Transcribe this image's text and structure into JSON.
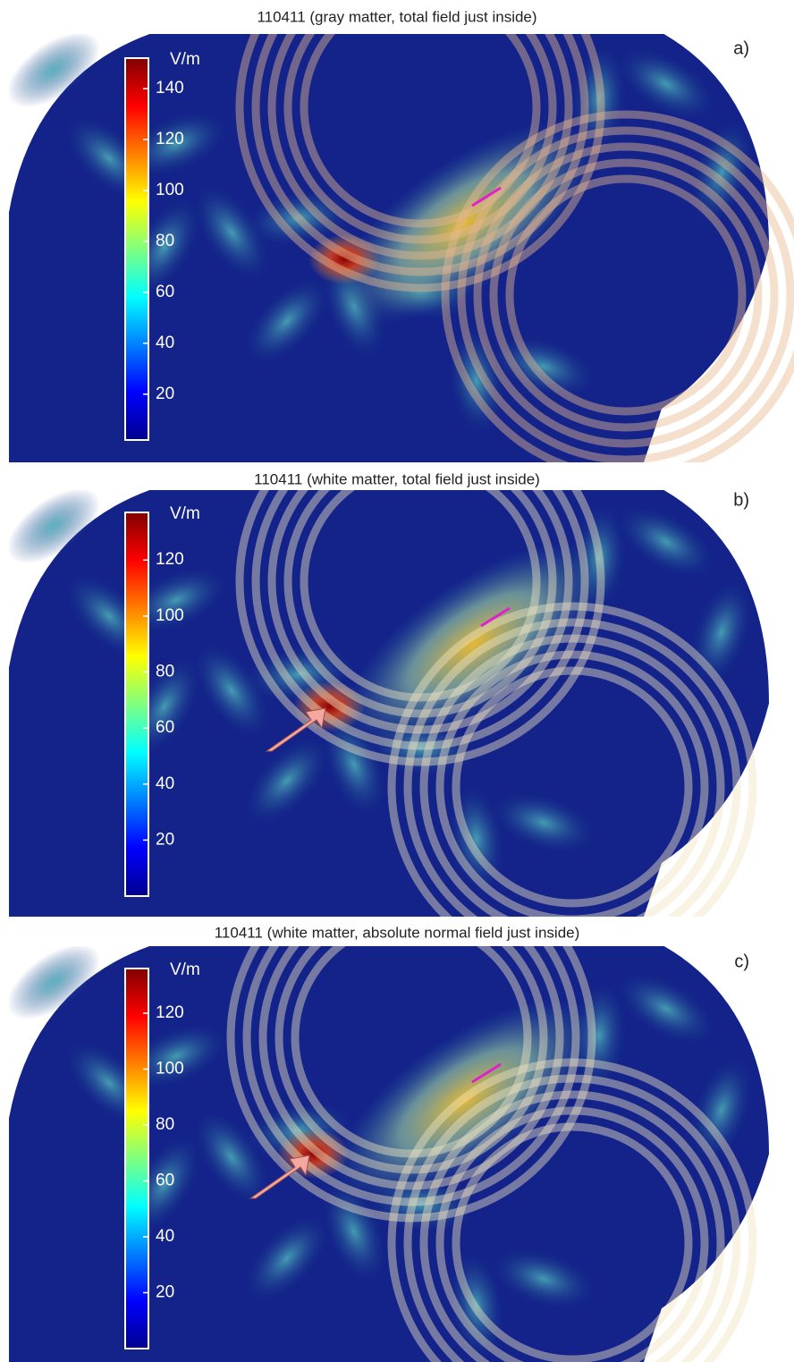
{
  "panels": [
    {
      "title": "110411 (gray matter, total field just inside)",
      "label": "a)",
      "colorbar": {
        "unit": "V/m",
        "range": [
          2,
          152
        ],
        "ticks": [
          20,
          40,
          60,
          80,
          100,
          120,
          140
        ]
      }
    },
    {
      "title": "110411 (white matter, total field just inside)",
      "label": "b)",
      "colorbar": {
        "unit": "V/m",
        "range": [
          0,
          137
        ],
        "ticks": [
          20,
          40,
          60,
          80,
          100,
          120
        ]
      }
    },
    {
      "title": "110411 (white matter, absolute normal field just inside)",
      "label": "c)",
      "colorbar": {
        "unit": "V/m",
        "range": [
          0,
          136
        ],
        "ticks": [
          20,
          40,
          60,
          80,
          100,
          120
        ]
      }
    }
  ]
}
